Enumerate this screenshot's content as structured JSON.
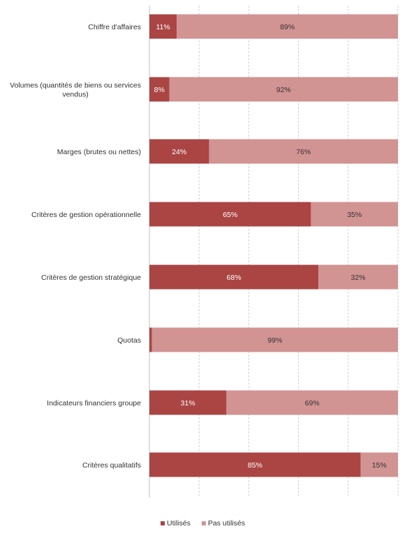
{
  "chart_data": {
    "type": "bar",
    "orientation": "horizontal",
    "stacked": true,
    "percent_stacked": true,
    "categories": [
      "Chiffre d'affaires",
      "Volumes (quantités de biens ou services vendus)",
      "Marges (brutes ou nettes)",
      "Critères de gestion opérationnelle",
      "Critères de gestion stratégique",
      "Quotas",
      "Indicateurs financiers groupe",
      "Critères qualitatifs"
    ],
    "series": [
      {
        "name": "Utilisés",
        "color": "#AA4544",
        "label_color": "#ffffff",
        "values": [
          11,
          8,
          24,
          65,
          68,
          1,
          31,
          85
        ],
        "labels": [
          "11%",
          "8%",
          "24%",
          "65%",
          "68%",
          "",
          "31%",
          "85%"
        ]
      },
      {
        "name": "Pas utilisés",
        "color": "#D29393",
        "label_color": "#333333",
        "values": [
          89,
          92,
          76,
          35,
          32,
          99,
          69,
          15
        ],
        "labels": [
          "89%",
          "92%",
          "76%",
          "35%",
          "32%",
          "99%",
          "69%",
          "15%"
        ]
      }
    ],
    "xlim": [
      0,
      100
    ],
    "grid": true,
    "legend": "bottom",
    "title": "",
    "xlabel": "",
    "ylabel": ""
  }
}
